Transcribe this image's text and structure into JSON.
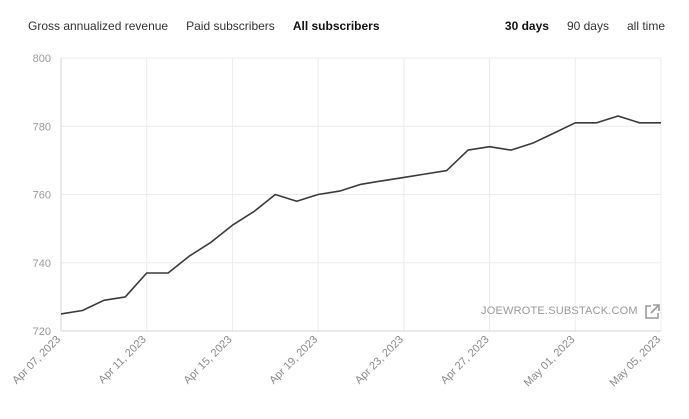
{
  "tabs_left": [
    {
      "label": "Gross annualized revenue",
      "active": false
    },
    {
      "label": "Paid subscribers",
      "active": false
    },
    {
      "label": "All subscribers",
      "active": true
    }
  ],
  "tabs_right": [
    {
      "label": "30 days",
      "active": true
    },
    {
      "label": "90 days",
      "active": false
    },
    {
      "label": "all time",
      "active": false
    }
  ],
  "watermark": "JOEWROTE.SUBSTACK.COM",
  "icons": {
    "external_link": "external-link-icon"
  },
  "colors": {
    "series": "#3a3a3a",
    "grid": "#ececec",
    "tick_text": "#9a9a9a"
  },
  "chart_data": {
    "type": "line",
    "ylim": [
      720,
      800
    ],
    "yticks": [
      720,
      740,
      760,
      780,
      800
    ],
    "xticks": [
      "Apr 07, 2023",
      "Apr 11, 2023",
      "Apr 15, 2023",
      "Apr 19, 2023",
      "Apr 23, 2023",
      "Apr 27, 2023",
      "May 01, 2023",
      "May 05, 2023"
    ],
    "grid": true,
    "series": [
      {
        "x": [
          "2023-04-07",
          "2023-04-08",
          "2023-04-09",
          "2023-04-10",
          "2023-04-11",
          "2023-04-12",
          "2023-04-13",
          "2023-04-14",
          "2023-04-15",
          "2023-04-16",
          "2023-04-17",
          "2023-04-18",
          "2023-04-19",
          "2023-04-20",
          "2023-04-21",
          "2023-04-22",
          "2023-04-23",
          "2023-04-24",
          "2023-04-25",
          "2023-04-26",
          "2023-04-27",
          "2023-04-28",
          "2023-04-29",
          "2023-04-30",
          "2023-05-01",
          "2023-05-02",
          "2023-05-03",
          "2023-05-04",
          "2023-05-05"
        ],
        "values": [
          725,
          726,
          729,
          730,
          737,
          737,
          742,
          746,
          751,
          755,
          760,
          758,
          760,
          761,
          763,
          764,
          765,
          766,
          767,
          773,
          774,
          773,
          775,
          778,
          781,
          781,
          783,
          781,
          781
        ]
      }
    ]
  }
}
